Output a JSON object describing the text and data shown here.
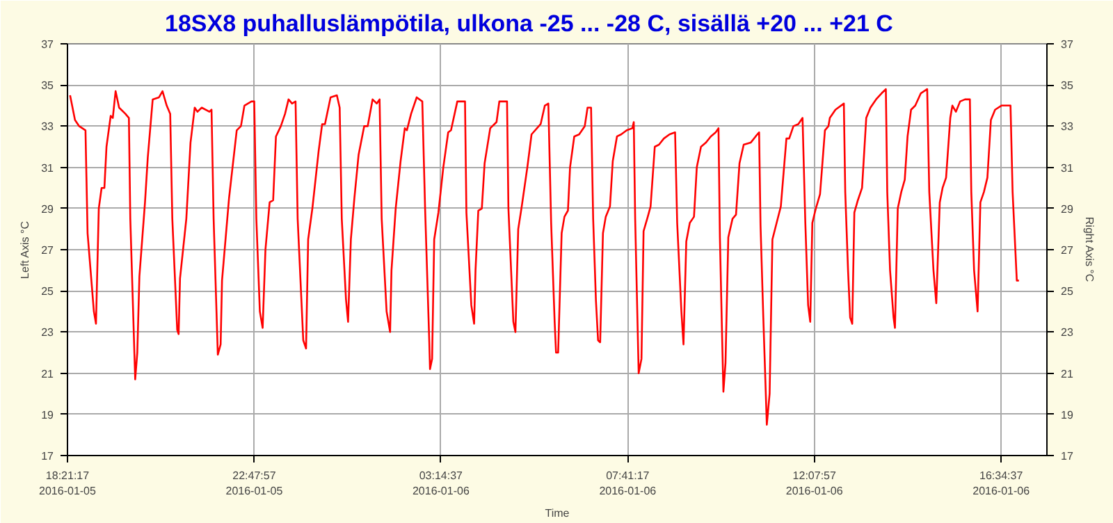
{
  "chart_data": {
    "type": "line",
    "title": "18SX8 puhalluslämpötila, ulkona -25 ... -28 C, sisällä +20 ... +21 C",
    "xlabel": "Time",
    "ylabel": "Left Axis °C",
    "y2label": "Right Axis °C",
    "xlim": [
      "2016-01-05T18:21:17",
      "2016-01-06T17:40"
    ],
    "xticks": [
      {
        "value": "2016-01-05T18:21:17",
        "label": "18:21:17\n2016-01-05"
      },
      {
        "value": "2016-01-05T22:47:57",
        "label": "22:47:57\n2016-01-05"
      },
      {
        "value": "2016-01-06T03:14:37",
        "label": "03:14:37\n2016-01-06"
      },
      {
        "value": "2016-01-06T07:41:17",
        "label": "07:41:17\n2016-01-06"
      },
      {
        "value": "2016-01-06T12:07:57",
        "label": "12:07:57\n2016-01-06"
      },
      {
        "value": "2016-01-06T16:34:37",
        "label": "16:34:37\n2016-01-06"
      }
    ],
    "ylim": [
      17,
      37
    ],
    "yticks": [
      17,
      19,
      21,
      23,
      25,
      27,
      29,
      31,
      33,
      35,
      37
    ],
    "y2lim": [
      17,
      37
    ],
    "y2ticks": [
      17,
      19,
      21,
      23,
      25,
      27,
      29,
      31,
      33,
      35,
      37
    ],
    "grid": true,
    "marker": "none",
    "line_style": "solid",
    "series": [
      {
        "color": "#ff0000",
        "x": [
          "2016-01-05T18:25",
          "2016-01-05T18:32",
          "2016-01-05T18:38",
          "2016-01-05T18:47",
          "2016-01-05T18:50",
          "2016-01-05T18:59",
          "2016-01-05T19:02",
          "2016-01-05T19:06",
          "2016-01-05T19:10",
          "2016-01-05T19:14",
          "2016-01-05T19:17",
          "2016-01-05T19:23",
          "2016-01-05T19:26",
          "2016-01-05T19:30",
          "2016-01-05T19:35",
          "2016-01-05T19:44",
          "2016-01-05T19:49",
          "2016-01-05T19:51",
          "2016-01-05T19:58",
          "2016-01-05T20:01",
          "2016-01-05T20:04",
          "2016-01-05T20:12",
          "2016-01-05T20:16",
          "2016-01-05T20:23",
          "2016-01-05T20:32",
          "2016-01-05T20:37",
          "2016-01-05T20:43",
          "2016-01-05T20:48",
          "2016-01-05T20:51",
          "2016-01-05T20:58",
          "2016-01-05T21:00",
          "2016-01-05T21:02",
          "2016-01-05T21:11",
          "2016-01-05T21:17",
          "2016-01-05T21:23",
          "2016-01-05T21:27",
          "2016-01-05T21:33",
          "2016-01-05T21:44",
          "2016-01-05T21:47",
          "2016-01-05T21:50",
          "2016-01-05T21:56",
          "2016-01-05T22:00",
          "2016-01-05T22:02",
          "2016-01-05T22:12",
          "2016-01-05T22:23",
          "2016-01-05T22:29",
          "2016-01-05T22:34",
          "2016-01-05T22:44",
          "2016-01-05T22:48",
          "2016-01-05T22:51",
          "2016-01-05T22:56",
          "2016-01-05T23:00",
          "2016-01-05T23:04",
          "2016-01-05T23:10",
          "2016-01-05T23:15",
          "2016-01-05T23:19",
          "2016-01-05T23:26",
          "2016-01-05T23:32",
          "2016-01-05T23:37",
          "2016-01-05T23:42",
          "2016-01-05T23:47",
          "2016-01-05T23:50",
          "2016-01-05T23:58",
          "2016-01-06T00:02",
          "2016-01-06T00:05",
          "2016-01-06T00:11",
          "2016-01-06T00:20",
          "2016-01-06T00:25",
          "2016-01-06T00:29",
          "2016-01-06T00:37",
          "2016-01-06T00:46",
          "2016-01-06T00:50",
          "2016-01-06T00:53",
          "2016-01-06T00:59",
          "2016-01-06T01:02",
          "2016-01-06T01:06",
          "2016-01-06T01:11",
          "2016-01-06T01:17",
          "2016-01-06T01:25",
          "2016-01-06T01:30",
          "2016-01-06T01:37",
          "2016-01-06T01:43",
          "2016-01-06T01:47",
          "2016-01-06T01:50",
          "2016-01-06T01:57",
          "2016-01-06T02:02",
          "2016-01-06T02:04",
          "2016-01-06T02:10",
          "2016-01-06T02:17",
          "2016-01-06T02:23",
          "2016-01-06T02:26",
          "2016-01-06T02:32",
          "2016-01-06T02:40",
          "2016-01-06T02:48",
          "2016-01-06T02:52",
          "2016-01-06T02:58",
          "2016-01-06T02:59",
          "2016-01-06T03:02",
          "2016-01-06T03:05",
          "2016-01-06T03:11",
          "2016-01-06T03:18",
          "2016-01-06T03:25",
          "2016-01-06T03:29",
          "2016-01-06T03:38",
          "2016-01-06T03:49",
          "2016-01-06T03:51",
          "2016-01-06T03:58",
          "2016-01-06T04:02",
          "2016-01-06T04:04",
          "2016-01-06T04:08",
          "2016-01-06T04:13",
          "2016-01-06T04:17",
          "2016-01-06T04:25",
          "2016-01-06T04:34",
          "2016-01-06T04:38",
          "2016-01-06T04:49",
          "2016-01-06T04:51",
          "2016-01-06T04:58",
          "2016-01-06T05:01",
          "2016-01-06T05:05",
          "2016-01-06T05:10",
          "2016-01-06T05:18",
          "2016-01-06T05:24",
          "2016-01-06T05:37",
          "2016-01-06T05:43",
          "2016-01-06T05:48",
          "2016-01-06T05:52",
          "2016-01-06T05:57",
          "2016-01-06T05:59",
          "2016-01-06T06:02",
          "2016-01-06T06:07",
          "2016-01-06T06:11",
          "2016-01-06T06:16",
          "2016-01-06T06:19",
          "2016-01-06T06:25",
          "2016-01-06T06:32",
          "2016-01-06T06:40",
          "2016-01-06T06:44",
          "2016-01-06T06:49",
          "2016-01-06T06:52",
          "2016-01-06T06:56",
          "2016-01-06T06:59",
          "2016-01-06T07:02",
          "2016-01-06T07:06",
          "2016-01-06T07:10",
          "2016-01-06T07:16",
          "2016-01-06T07:20",
          "2016-01-06T07:26",
          "2016-01-06T07:32",
          "2016-01-06T07:40",
          "2016-01-06T07:48",
          "2016-01-06T07:50",
          "2016-01-06T07:52",
          "2016-01-06T07:57",
          "2016-01-06T08:01",
          "2016-01-06T08:04",
          "2016-01-06T08:10",
          "2016-01-06T08:14",
          "2016-01-06T08:20",
          "2016-01-06T08:26",
          "2016-01-06T08:33",
          "2016-01-06T08:41",
          "2016-01-06T08:49",
          "2016-01-06T08:52",
          "2016-01-06T08:58",
          "2016-01-06T09:01",
          "2016-01-06T09:05",
          "2016-01-06T09:10",
          "2016-01-06T09:16",
          "2016-01-06T09:20",
          "2016-01-06T09:26",
          "2016-01-06T09:33",
          "2016-01-06T09:40",
          "2016-01-06T09:47",
          "2016-01-06T09:51",
          "2016-01-06T09:53",
          "2016-01-06T09:56",
          "2016-01-06T09:58",
          "2016-01-06T10:01",
          "2016-01-06T10:05",
          "2016-01-06T10:11",
          "2016-01-06T10:16",
          "2016-01-06T10:21",
          "2016-01-06T10:27",
          "2016-01-06T10:37",
          "2016-01-06T10:44",
          "2016-01-06T10:49",
          "2016-01-06T10:51",
          "2016-01-06T10:55",
          "2016-01-06T11:00",
          "2016-01-06T11:04",
          "2016-01-06T11:08",
          "2016-01-06T11:14",
          "2016-01-06T11:20",
          "2016-01-06T11:28",
          "2016-01-06T11:32",
          "2016-01-06T11:38",
          "2016-01-06T11:45",
          "2016-01-06T11:51",
          "2016-01-06T11:55",
          "2016-01-06T11:59",
          "2016-01-06T12:02",
          "2016-01-06T12:05",
          "2016-01-06T12:10",
          "2016-01-06T12:16",
          "2016-01-06T12:23",
          "2016-01-06T12:28",
          "2016-01-06T12:30",
          "2016-01-06T12:38",
          "2016-01-06T12:50",
          "2016-01-06T12:52",
          "2016-01-06T12:56",
          "2016-01-06T12:59",
          "2016-01-06T13:02",
          "2016-01-06T13:05",
          "2016-01-06T13:10",
          "2016-01-06T13:16",
          "2016-01-06T13:22",
          "2016-01-06T13:28",
          "2016-01-06T13:36",
          "2016-01-06T13:44",
          "2016-01-06T13:50",
          "2016-01-06T13:52",
          "2016-01-06T13:56",
          "2016-01-06T14:01",
          "2016-01-06T14:03",
          "2016-01-06T14:07",
          "2016-01-06T14:12",
          "2016-01-06T14:17",
          "2016-01-06T14:21",
          "2016-01-06T14:26",
          "2016-01-06T14:32",
          "2016-01-06T14:40",
          "2016-01-06T14:49",
          "2016-01-06T14:52",
          "2016-01-06T14:58",
          "2016-01-06T15:02",
          "2016-01-06T15:07",
          "2016-01-06T15:11",
          "2016-01-06T15:16",
          "2016-01-06T15:22",
          "2016-01-06T15:25",
          "2016-01-06T15:30",
          "2016-01-06T15:36",
          "2016-01-06T15:43",
          "2016-01-06T15:50",
          "2016-01-06T15:52",
          "2016-01-06T15:56",
          "2016-01-06T16:01",
          "2016-01-06T16:05",
          "2016-01-06T16:10",
          "2016-01-06T16:15",
          "2016-01-06T16:20",
          "2016-01-06T16:26",
          "2016-01-06T16:35",
          "2016-01-06T16:48",
          "2016-01-06T16:51",
          "2016-01-06T16:57",
          "2016-01-06T17:00"
        ],
        "values": [
          34.5,
          33.3,
          33.0,
          32.8,
          27.8,
          24.0,
          23.4,
          29.0,
          30.0,
          30.0,
          32.0,
          33.5,
          33.4,
          34.7,
          33.9,
          33.6,
          33.4,
          28.5,
          20.7,
          22.0,
          25.7,
          29.3,
          31.5,
          34.3,
          34.4,
          34.7,
          34.0,
          33.6,
          28.5,
          23.1,
          22.9,
          25.6,
          28.5,
          32.2,
          33.9,
          33.7,
          33.9,
          33.7,
          33.8,
          28.5,
          21.9,
          22.4,
          25.5,
          29.5,
          32.8,
          33.0,
          34.0,
          34.2,
          34.2,
          28.5,
          24.0,
          23.2,
          27.0,
          29.3,
          29.4,
          32.5,
          33.0,
          33.6,
          34.3,
          34.1,
          34.2,
          28.5,
          22.6,
          22.2,
          27.5,
          29.0,
          31.8,
          33.1,
          33.1,
          34.4,
          34.5,
          33.9,
          28.5,
          24.6,
          23.5,
          27.5,
          29.5,
          31.6,
          33.0,
          33.0,
          34.3,
          34.1,
          34.3,
          28.5,
          24.0,
          23.0,
          26.0,
          29.0,
          31.3,
          32.9,
          32.8,
          33.6,
          34.4,
          34.2,
          29.0,
          22.5,
          21.2,
          21.7,
          27.5,
          28.8,
          31.0,
          32.7,
          32.8,
          34.2,
          34.2,
          28.8,
          24.3,
          23.4,
          26.0,
          28.9,
          29.0,
          31.2,
          32.9,
          33.2,
          34.2,
          34.2,
          29.0,
          23.5,
          23.0,
          28.0,
          29.1,
          31.0,
          32.6,
          33.1,
          34.0,
          34.1,
          28.3,
          23.5,
          22.0,
          22.0,
          27.8,
          28.6,
          28.9,
          31.0,
          32.5,
          32.6,
          33.0,
          33.9,
          33.9,
          28.5,
          24.5,
          22.6,
          22.5,
          27.8,
          28.6,
          29.1,
          31.3,
          32.5,
          32.6,
          32.8,
          32.9,
          33.2,
          28.5,
          21.0,
          21.7,
          27.9,
          28.6,
          29.1,
          32.0,
          32.1,
          32.4,
          32.6,
          32.7,
          28.3,
          24.0,
          22.4,
          27.4,
          28.3,
          28.6,
          31.0,
          32.0,
          32.2,
          32.5,
          32.7,
          32.9,
          27.6,
          23.0,
          20.1,
          21.5,
          27.6,
          28.5,
          28.7,
          31.2,
          32.1,
          32.2,
          32.5,
          32.7,
          28.2,
          23.7,
          18.5,
          20.0,
          27.5,
          28.3,
          29.1,
          32.4,
          32.4,
          33.0,
          33.1,
          33.4,
          28.3,
          24.3,
          23.5,
          28.3,
          29.0,
          29.7,
          32.8,
          33.0,
          33.4,
          33.8,
          34.1,
          29.8,
          26.0,
          23.7,
          23.4,
          28.8,
          29.4,
          30.0,
          33.4,
          33.9,
          34.3,
          34.6,
          34.8,
          29.8,
          26.0,
          23.7,
          23.2,
          29.0,
          29.8,
          30.4,
          32.5,
          33.8,
          34.0,
          34.6,
          34.8,
          29.8,
          26.0,
          24.4,
          29.3,
          30.0,
          30.5,
          33.4,
          34.0,
          33.7,
          34.2,
          34.3,
          34.3,
          29.8,
          26.0,
          24.0,
          29.3,
          29.8,
          30.5,
          33.3,
          33.8,
          34.0,
          34.0,
          29.8,
          25.5,
          25.5
        ]
      }
    ]
  }
}
